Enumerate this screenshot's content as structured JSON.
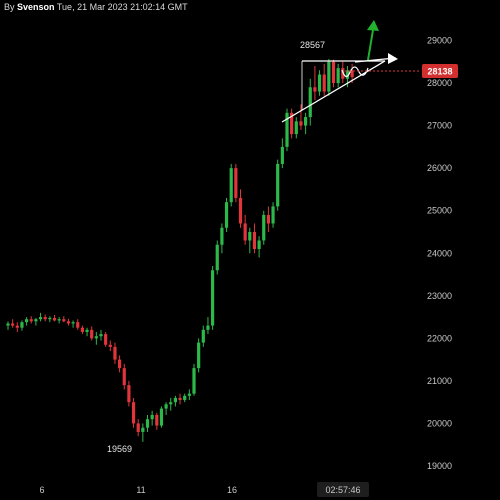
{
  "header": {
    "author_prefix": "By",
    "author": "Svenson",
    "timestamp": "Tue, 21 Mar 2023 21:02:14 GMT"
  },
  "chart_data": {
    "type": "candlestick",
    "y_ticks": [
      19000,
      20000,
      21000,
      22000,
      23000,
      24000,
      25000,
      26000,
      27000,
      28000,
      29000
    ],
    "x_ticks": [
      "6",
      "11",
      "16"
    ],
    "time_readout": "02:57:46",
    "current_price": "28138",
    "annotations": {
      "high": "28567",
      "low": "19569"
    },
    "colors": {
      "up": "#2db84a",
      "down": "#e0353b",
      "drawing": "#ffffff",
      "arrow": "#22b02e",
      "price_badge": "#d32f2f"
    },
    "candles": [
      [
        22300,
        22400,
        22200,
        22350
      ],
      [
        22350,
        22450,
        22250,
        22300
      ],
      [
        22300,
        22380,
        22150,
        22250
      ],
      [
        22250,
        22420,
        22180,
        22380
      ],
      [
        22380,
        22500,
        22300,
        22450
      ],
      [
        22450,
        22520,
        22350,
        22400
      ],
      [
        22400,
        22480,
        22300,
        22450
      ],
      [
        22450,
        22600,
        22400,
        22500
      ],
      [
        22500,
        22560,
        22400,
        22450
      ],
      [
        22450,
        22520,
        22380,
        22480
      ],
      [
        22480,
        22550,
        22400,
        22420
      ],
      [
        22420,
        22500,
        22350,
        22450
      ],
      [
        22450,
        22520,
        22380,
        22400
      ],
      [
        22400,
        22460,
        22300,
        22350
      ],
      [
        22350,
        22420,
        22250,
        22380
      ],
      [
        22380,
        22450,
        22200,
        22250
      ],
      [
        22250,
        22300,
        22100,
        22150
      ],
      [
        22150,
        22250,
        22050,
        22200
      ],
      [
        22200,
        22280,
        21950,
        22000
      ],
      [
        22000,
        22150,
        21850,
        22050
      ],
      [
        22050,
        22200,
        21950,
        22100
      ],
      [
        22100,
        22150,
        21800,
        21850
      ],
      [
        21850,
        21950,
        21700,
        21800
      ],
      [
        21800,
        21900,
        21400,
        21500
      ],
      [
        21500,
        21600,
        21200,
        21300
      ],
      [
        21300,
        21400,
        20800,
        20900
      ],
      [
        20900,
        21000,
        20400,
        20500
      ],
      [
        20500,
        20600,
        19900,
        20000
      ],
      [
        20000,
        20100,
        19700,
        19800
      ],
      [
        19800,
        20000,
        19569,
        19900
      ],
      [
        19900,
        20200,
        19800,
        20100
      ],
      [
        20100,
        20300,
        19950,
        20200
      ],
      [
        20200,
        20250,
        19850,
        19950
      ],
      [
        19950,
        20400,
        19900,
        20350
      ],
      [
        20350,
        20500,
        20200,
        20450
      ],
      [
        20450,
        20600,
        20300,
        20500
      ],
      [
        20500,
        20650,
        20400,
        20600
      ],
      [
        20600,
        20700,
        20450,
        20550
      ],
      [
        20550,
        20700,
        20500,
        20650
      ],
      [
        20650,
        20800,
        20550,
        20700
      ],
      [
        20700,
        21400,
        20650,
        21300
      ],
      [
        21300,
        22000,
        21200,
        21900
      ],
      [
        21900,
        22300,
        21800,
        22200
      ],
      [
        22200,
        22500,
        22100,
        22300
      ],
      [
        22300,
        23700,
        22200,
        23600
      ],
      [
        23600,
        24300,
        23500,
        24200
      ],
      [
        24200,
        24700,
        24000,
        24600
      ],
      [
        24600,
        25300,
        24500,
        25200
      ],
      [
        25200,
        26100,
        25100,
        26000
      ],
      [
        26000,
        26100,
        25200,
        25300
      ],
      [
        25300,
        25500,
        24600,
        24700
      ],
      [
        24700,
        24900,
        24200,
        24300
      ],
      [
        24300,
        24600,
        24000,
        24500
      ],
      [
        24500,
        24700,
        24000,
        24100
      ],
      [
        24100,
        24400,
        23900,
        24300
      ],
      [
        24300,
        25000,
        24200,
        24900
      ],
      [
        24900,
        25100,
        24500,
        24700
      ],
      [
        24700,
        25200,
        24600,
        25100
      ],
      [
        25100,
        26200,
        25000,
        26100
      ],
      [
        26100,
        26700,
        26000,
        26500
      ],
      [
        26500,
        27400,
        26400,
        27300
      ],
      [
        27300,
        27400,
        26700,
        26800
      ],
      [
        26800,
        27200,
        26700,
        27100
      ],
      [
        27100,
        27500,
        26900,
        27000
      ],
      [
        27000,
        27300,
        26800,
        27200
      ],
      [
        27200,
        28100,
        27000,
        27900
      ],
      [
        27900,
        28400,
        27600,
        27800
      ],
      [
        27800,
        28300,
        27700,
        28200
      ],
      [
        28200,
        28450,
        27700,
        27800
      ],
      [
        27800,
        28567,
        27700,
        28500
      ],
      [
        28500,
        28550,
        27900,
        28000
      ],
      [
        28000,
        28450,
        27900,
        28350
      ],
      [
        28350,
        28500,
        28000,
        28100
      ],
      [
        28100,
        28400,
        27900,
        28300
      ],
      [
        28300,
        28450,
        28000,
        28138
      ]
    ]
  }
}
